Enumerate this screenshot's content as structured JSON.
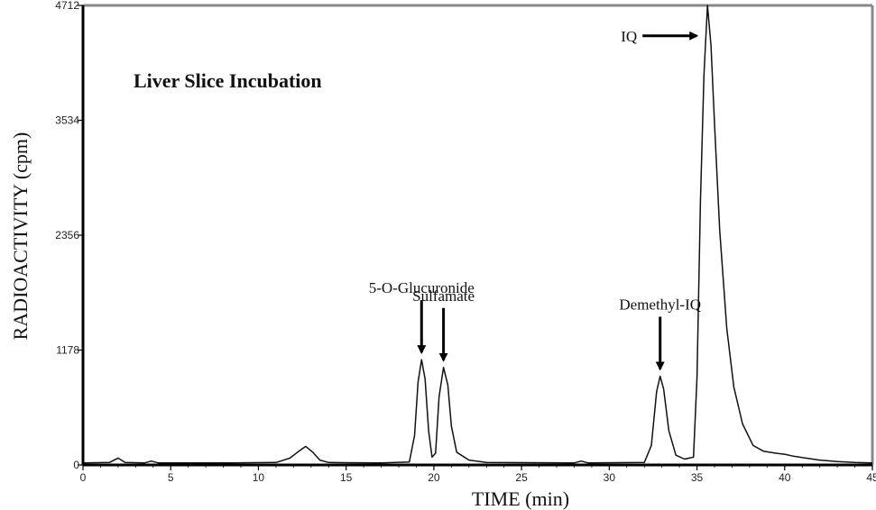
{
  "chart_data": {
    "type": "line",
    "title": "",
    "inset_label": "Liver Slice Incubation",
    "xlabel": "TIME (min)",
    "ylabel": "RADIOACTIVITY (cpm)",
    "xlim": [
      0,
      45
    ],
    "ylim": [
      0,
      4712
    ],
    "x_ticks": [
      0,
      5,
      10,
      15,
      20,
      25,
      30,
      35,
      40,
      45
    ],
    "y_ticks": [
      0,
      1178,
      2356,
      3534,
      4712
    ],
    "grid": false,
    "series": [
      {
        "points": [
          [
            0,
            20
          ],
          [
            1.5,
            25
          ],
          [
            2.0,
            70
          ],
          [
            2.4,
            25
          ],
          [
            3.5,
            20
          ],
          [
            3.9,
            40
          ],
          [
            4.3,
            20
          ],
          [
            8,
            20
          ],
          [
            11.0,
            25
          ],
          [
            11.8,
            70
          ],
          [
            12.3,
            140
          ],
          [
            12.7,
            190
          ],
          [
            13.1,
            130
          ],
          [
            13.5,
            50
          ],
          [
            14.0,
            25
          ],
          [
            17,
            20
          ],
          [
            18.6,
            30
          ],
          [
            18.9,
            300
          ],
          [
            19.1,
            850
          ],
          [
            19.3,
            1080
          ],
          [
            19.5,
            880
          ],
          [
            19.7,
            350
          ],
          [
            19.9,
            80
          ],
          [
            20.1,
            120
          ],
          [
            20.3,
            700
          ],
          [
            20.55,
            1000
          ],
          [
            20.8,
            820
          ],
          [
            21.0,
            400
          ],
          [
            21.3,
            130
          ],
          [
            22.0,
            50
          ],
          [
            23.0,
            25
          ],
          [
            28.0,
            20
          ],
          [
            28.4,
            40
          ],
          [
            28.8,
            20
          ],
          [
            32.0,
            25
          ],
          [
            32.4,
            200
          ],
          [
            32.7,
            750
          ],
          [
            32.9,
            910
          ],
          [
            33.1,
            780
          ],
          [
            33.4,
            350
          ],
          [
            33.8,
            100
          ],
          [
            34.3,
            60
          ],
          [
            34.8,
            80
          ],
          [
            35.0,
            900
          ],
          [
            35.2,
            2700
          ],
          [
            35.4,
            4000
          ],
          [
            35.6,
            4712
          ],
          [
            35.8,
            4300
          ],
          [
            36.0,
            3500
          ],
          [
            36.3,
            2400
          ],
          [
            36.7,
            1400
          ],
          [
            37.1,
            800
          ],
          [
            37.6,
            420
          ],
          [
            38.2,
            200
          ],
          [
            38.8,
            140
          ],
          [
            39.5,
            120
          ],
          [
            40.0,
            110
          ],
          [
            40.5,
            90
          ],
          [
            41.2,
            70
          ],
          [
            42.0,
            50
          ],
          [
            43.0,
            35
          ],
          [
            44.0,
            25
          ],
          [
            45.0,
            20
          ]
        ]
      }
    ],
    "annotations": [
      {
        "text": "5-O-Glucuronide",
        "x": 19.3,
        "y": 1080
      },
      {
        "text": "Sulfamate",
        "x": 20.55,
        "y": 1000
      },
      {
        "text": "Demethyl-IQ",
        "x": 32.9,
        "y": 910
      },
      {
        "text": "IQ",
        "x": 35.6,
        "y": 4400
      }
    ],
    "colors": {
      "line": "#111111",
      "axis": "#000000",
      "frame": "#888888"
    }
  }
}
